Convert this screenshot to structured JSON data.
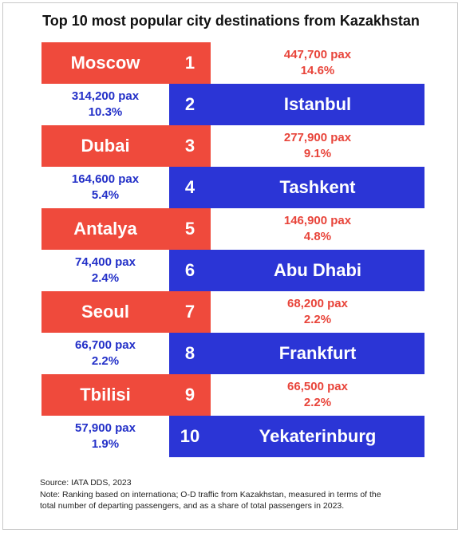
{
  "title": "Top 10 most popular city destinations from Kazakhstan",
  "colors": {
    "left_block": "#ef4a3c",
    "right_block": "#2b35d6",
    "left_stat_text": "#e8443a",
    "right_stat_text": "#2330c8"
  },
  "chart_data": {
    "type": "table",
    "title": "Top 10 most popular city destinations from Kazakhstan",
    "rows": [
      {
        "rank": "1",
        "city": "Moscow",
        "pax": "447,700 pax",
        "share": "14.6%",
        "side": "left"
      },
      {
        "rank": "2",
        "city": "Istanbul",
        "pax": "314,200 pax",
        "share": "10.3%",
        "side": "right"
      },
      {
        "rank": "3",
        "city": "Dubai",
        "pax": "277,900 pax",
        "share": "9.1%",
        "side": "left"
      },
      {
        "rank": "4",
        "city": "Tashkent",
        "pax": "164,600 pax",
        "share": "5.4%",
        "side": "right"
      },
      {
        "rank": "5",
        "city": "Antalya",
        "pax": "146,900 pax",
        "share": "4.8%",
        "side": "left"
      },
      {
        "rank": "6",
        "city": "Abu Dhabi",
        "pax": "74,400 pax",
        "share": "2.4%",
        "side": "right"
      },
      {
        "rank": "7",
        "city": "Seoul",
        "pax": "68,200 pax",
        "share": "2.2%",
        "side": "left"
      },
      {
        "rank": "8",
        "city": "Frankfurt",
        "pax": "66,700 pax",
        "share": "2.2%",
        "side": "right"
      },
      {
        "rank": "9",
        "city": "Tbilisi",
        "pax": "66,500 pax",
        "share": "2.2%",
        "side": "left"
      },
      {
        "rank": "10",
        "city": "Yekaterinburg",
        "pax": "57,900 pax",
        "share": "1.9%",
        "side": "right"
      }
    ]
  },
  "footer": {
    "source": "Source: IATA DDS, 2023",
    "note_line1": "Note: Ranking based on internationa; O-D traffic from Kazakhstan, measured in terms of the",
    "note_line2": "total number of departing passengers, and as a share of total passengers in 2023."
  }
}
